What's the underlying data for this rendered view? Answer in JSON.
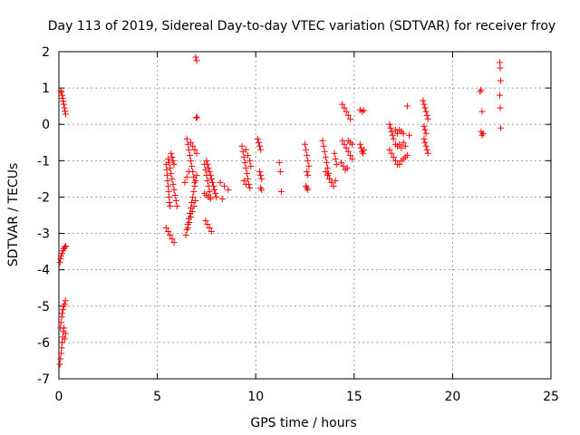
{
  "chart_data": {
    "type": "scatter",
    "title": "Day 113 of 2019, Sidereal Day-to-day VTEC variation (SDTVAR) for receiver froy",
    "xlabel": "GPS time / hours",
    "ylabel": "SDTVAR / TECUs",
    "xlim": [
      0,
      25
    ],
    "ylim": [
      -7,
      2
    ],
    "xticks": [
      0,
      5,
      10,
      15,
      20,
      25
    ],
    "yticks": [
      -7,
      -6,
      -5,
      -4,
      -3,
      -2,
      -1,
      0,
      1,
      2
    ],
    "grid": true,
    "marker": "plus",
    "color": "#ff0000",
    "series": [
      {
        "points": [
          [
            0.1,
            0.92
          ],
          [
            0.13,
            0.88
          ],
          [
            0.16,
            0.8
          ],
          [
            0.19,
            0.72
          ],
          [
            0.22,
            0.64
          ],
          [
            0.25,
            0.55
          ],
          [
            0.28,
            0.45
          ],
          [
            0.31,
            0.36
          ],
          [
            0.34,
            0.28
          ],
          [
            0.05,
            -3.8
          ],
          [
            0.08,
            -3.7
          ],
          [
            0.12,
            -3.62
          ],
          [
            0.16,
            -3.55
          ],
          [
            0.2,
            -3.48
          ],
          [
            0.25,
            -3.42
          ],
          [
            0.3,
            -3.38
          ],
          [
            0.35,
            -3.35
          ],
          [
            0.05,
            -6.6
          ],
          [
            0.08,
            -6.45
          ],
          [
            0.11,
            -6.3
          ],
          [
            0.14,
            -6.15
          ],
          [
            0.17,
            -6.0
          ],
          [
            0.2,
            -5.85
          ],
          [
            0.23,
            -5.7
          ],
          [
            0.26,
            -5.6
          ],
          [
            0.3,
            -5.9
          ],
          [
            0.34,
            -5.75
          ],
          [
            0.08,
            -5.6
          ],
          [
            0.11,
            -5.45
          ],
          [
            0.14,
            -5.3
          ],
          [
            0.17,
            -5.2
          ],
          [
            0.2,
            -5.1
          ],
          [
            0.24,
            -5.0
          ],
          [
            0.28,
            -4.95
          ],
          [
            0.33,
            -4.85
          ],
          [
            5.45,
            -1.1
          ],
          [
            5.48,
            -1.25
          ],
          [
            5.5,
            -1.4
          ],
          [
            5.52,
            -1.55
          ],
          [
            5.55,
            -1.7
          ],
          [
            5.58,
            -1.85
          ],
          [
            5.6,
            -2.0
          ],
          [
            5.62,
            -2.15
          ],
          [
            5.65,
            -2.25
          ],
          [
            5.55,
            -0.95
          ],
          [
            5.6,
            -1.05
          ],
          [
            5.65,
            -1.2
          ],
          [
            5.7,
            -1.35
          ],
          [
            5.75,
            -1.5
          ],
          [
            5.8,
            -1.65
          ],
          [
            5.85,
            -1.8
          ],
          [
            5.9,
            -1.95
          ],
          [
            5.95,
            -2.1
          ],
          [
            6.0,
            -2.25
          ],
          [
            5.7,
            -0.8
          ],
          [
            5.75,
            -0.9
          ],
          [
            5.8,
            -1.0
          ],
          [
            5.85,
            -1.1
          ],
          [
            5.45,
            -2.85
          ],
          [
            5.55,
            -2.95
          ],
          [
            5.65,
            -3.05
          ],
          [
            5.75,
            -3.15
          ],
          [
            5.85,
            -3.25
          ],
          [
            6.45,
            -3.05
          ],
          [
            6.5,
            -2.9
          ],
          [
            6.55,
            -2.75
          ],
          [
            6.6,
            -2.6
          ],
          [
            6.65,
            -2.45
          ],
          [
            6.7,
            -2.3
          ],
          [
            6.75,
            -2.15
          ],
          [
            6.8,
            -2.0
          ],
          [
            6.85,
            -1.85
          ],
          [
            6.9,
            -1.7
          ],
          [
            6.95,
            -1.55
          ],
          [
            7.0,
            -1.4
          ],
          [
            6.55,
            -2.85
          ],
          [
            6.62,
            -2.7
          ],
          [
            6.7,
            -2.55
          ],
          [
            6.78,
            -2.4
          ],
          [
            6.86,
            -2.25
          ],
          [
            6.94,
            -2.1
          ],
          [
            6.5,
            -0.4
          ],
          [
            6.55,
            -0.55
          ],
          [
            6.6,
            -0.7
          ],
          [
            6.65,
            -0.85
          ],
          [
            6.7,
            -1.0
          ],
          [
            6.75,
            -1.15
          ],
          [
            6.8,
            -1.3
          ],
          [
            6.85,
            -1.45
          ],
          [
            6.9,
            -1.6
          ],
          [
            6.7,
            -0.5
          ],
          [
            6.8,
            -0.6
          ],
          [
            6.9,
            -0.7
          ],
          [
            7.0,
            -0.8
          ],
          [
            6.4,
            -1.6
          ],
          [
            6.5,
            -1.45
          ],
          [
            6.6,
            -1.3
          ],
          [
            6.95,
            1.85
          ],
          [
            7.0,
            1.75
          ],
          [
            6.98,
            0.18
          ],
          [
            7.02,
            0.2
          ],
          [
            7.5,
            -1.0
          ],
          [
            7.55,
            -1.1
          ],
          [
            7.6,
            -1.2
          ],
          [
            7.65,
            -1.3
          ],
          [
            7.7,
            -1.4
          ],
          [
            7.75,
            -1.5
          ],
          [
            7.8,
            -1.6
          ],
          [
            7.85,
            -1.7
          ],
          [
            7.9,
            -1.8
          ],
          [
            7.95,
            -1.9
          ],
          [
            8.0,
            -2.0
          ],
          [
            7.4,
            -1.1
          ],
          [
            7.45,
            -1.25
          ],
          [
            7.5,
            -1.4
          ],
          [
            7.55,
            -1.55
          ],
          [
            7.6,
            -1.7
          ],
          [
            7.65,
            -1.85
          ],
          [
            7.7,
            -2.0
          ],
          [
            7.4,
            -1.9
          ],
          [
            7.5,
            -1.95
          ],
          [
            7.6,
            -2.0
          ],
          [
            7.7,
            -2.05
          ],
          [
            7.45,
            -2.65
          ],
          [
            7.55,
            -2.75
          ],
          [
            7.65,
            -2.85
          ],
          [
            7.75,
            -2.95
          ],
          [
            8.2,
            -1.6
          ],
          [
            8.4,
            -1.7
          ],
          [
            8.6,
            -1.8
          ],
          [
            8.3,
            -2.05
          ],
          [
            9.3,
            -0.6
          ],
          [
            9.35,
            -0.75
          ],
          [
            9.4,
            -0.9
          ],
          [
            9.45,
            -1.05
          ],
          [
            9.5,
            -1.2
          ],
          [
            9.55,
            -1.35
          ],
          [
            9.6,
            -1.5
          ],
          [
            9.65,
            -1.65
          ],
          [
            9.7,
            -1.75
          ],
          [
            9.5,
            -0.7
          ],
          [
            9.6,
            -0.85
          ],
          [
            9.7,
            -1.0
          ],
          [
            9.75,
            -1.15
          ],
          [
            9.4,
            -1.55
          ],
          [
            9.5,
            -1.65
          ],
          [
            10.1,
            -0.4
          ],
          [
            10.15,
            -0.5
          ],
          [
            10.2,
            -0.6
          ],
          [
            10.25,
            -0.7
          ],
          [
            10.2,
            -1.3
          ],
          [
            10.25,
            -1.4
          ],
          [
            10.3,
            -1.5
          ],
          [
            10.25,
            -1.75
          ],
          [
            10.3,
            -1.8
          ],
          [
            11.2,
            -1.05
          ],
          [
            11.25,
            -1.3
          ],
          [
            11.3,
            -1.85
          ],
          [
            12.5,
            -0.55
          ],
          [
            12.55,
            -0.7
          ],
          [
            12.6,
            -0.85
          ],
          [
            12.65,
            -1.0
          ],
          [
            12.7,
            -1.15
          ],
          [
            12.55,
            -1.7
          ],
          [
            12.6,
            -1.75
          ],
          [
            12.65,
            -1.8
          ],
          [
            12.6,
            -1.3
          ],
          [
            12.65,
            -1.4
          ],
          [
            13.4,
            -0.45
          ],
          [
            13.45,
            -0.6
          ],
          [
            13.5,
            -0.75
          ],
          [
            13.55,
            -0.9
          ],
          [
            13.6,
            -1.05
          ],
          [
            13.65,
            -1.2
          ],
          [
            13.7,
            -1.35
          ],
          [
            13.75,
            -1.5
          ],
          [
            13.55,
            -1.3
          ],
          [
            13.65,
            -1.4
          ],
          [
            13.75,
            -1.5
          ],
          [
            13.85,
            -1.6
          ],
          [
            13.95,
            -1.7
          ],
          [
            14.05,
            -1.55
          ],
          [
            14.0,
            -0.8
          ],
          [
            14.05,
            -0.95
          ],
          [
            14.1,
            -1.1
          ],
          [
            14.4,
            0.55
          ],
          [
            14.5,
            0.45
          ],
          [
            14.6,
            0.35
          ],
          [
            14.7,
            0.25
          ],
          [
            14.8,
            0.15
          ],
          [
            14.4,
            -0.45
          ],
          [
            14.5,
            -0.55
          ],
          [
            14.6,
            -0.65
          ],
          [
            14.7,
            -0.75
          ],
          [
            14.8,
            -0.85
          ],
          [
            14.9,
            -0.95
          ],
          [
            14.35,
            -1.05
          ],
          [
            14.45,
            -1.15
          ],
          [
            14.55,
            -1.25
          ],
          [
            14.65,
            -1.2
          ],
          [
            14.7,
            -0.45
          ],
          [
            14.8,
            -0.5
          ],
          [
            14.9,
            -0.55
          ],
          [
            15.3,
            0.4
          ],
          [
            15.4,
            0.35
          ],
          [
            15.5,
            0.38
          ],
          [
            15.3,
            -0.55
          ],
          [
            15.35,
            -0.65
          ],
          [
            15.4,
            -0.75
          ],
          [
            15.45,
            -0.8
          ],
          [
            15.5,
            -0.7
          ],
          [
            16.8,
            0.0
          ],
          [
            16.85,
            -0.1
          ],
          [
            16.9,
            -0.2
          ],
          [
            16.95,
            -0.3
          ],
          [
            17.0,
            -0.4
          ],
          [
            16.8,
            -0.7
          ],
          [
            16.9,
            -0.8
          ],
          [
            17.0,
            -0.9
          ],
          [
            17.1,
            -1.0
          ],
          [
            17.2,
            -1.1
          ],
          [
            17.1,
            -0.15
          ],
          [
            17.2,
            -0.25
          ],
          [
            17.3,
            -0.15
          ],
          [
            17.4,
            -0.2
          ],
          [
            17.5,
            -0.25
          ],
          [
            17.1,
            -0.55
          ],
          [
            17.2,
            -0.6
          ],
          [
            17.3,
            -0.55
          ],
          [
            17.4,
            -0.65
          ],
          [
            17.5,
            -0.5
          ],
          [
            17.6,
            -0.6
          ],
          [
            17.3,
            -1.1
          ],
          [
            17.4,
            -1.0
          ],
          [
            17.5,
            -0.95
          ],
          [
            17.6,
            -0.9
          ],
          [
            17.7,
            -0.85
          ],
          [
            17.7,
            0.5
          ],
          [
            17.8,
            -0.3
          ],
          [
            18.5,
            0.65
          ],
          [
            18.55,
            0.55
          ],
          [
            18.6,
            0.45
          ],
          [
            18.65,
            0.35
          ],
          [
            18.7,
            0.25
          ],
          [
            18.75,
            0.15
          ],
          [
            18.55,
            -0.4
          ],
          [
            18.6,
            -0.5
          ],
          [
            18.65,
            -0.6
          ],
          [
            18.7,
            -0.7
          ],
          [
            18.75,
            -0.8
          ],
          [
            18.55,
            -0.05
          ],
          [
            18.6,
            -0.15
          ],
          [
            18.65,
            -0.25
          ],
          [
            21.4,
            0.9
          ],
          [
            21.45,
            0.95
          ],
          [
            21.5,
            0.35
          ],
          [
            21.45,
            -0.2
          ],
          [
            21.5,
            -0.3
          ],
          [
            21.55,
            -0.25
          ],
          [
            22.4,
            1.7
          ],
          [
            22.42,
            1.55
          ],
          [
            22.44,
            1.2
          ],
          [
            22.4,
            0.8
          ],
          [
            22.42,
            0.45
          ],
          [
            22.45,
            -0.1
          ]
        ]
      }
    ]
  }
}
